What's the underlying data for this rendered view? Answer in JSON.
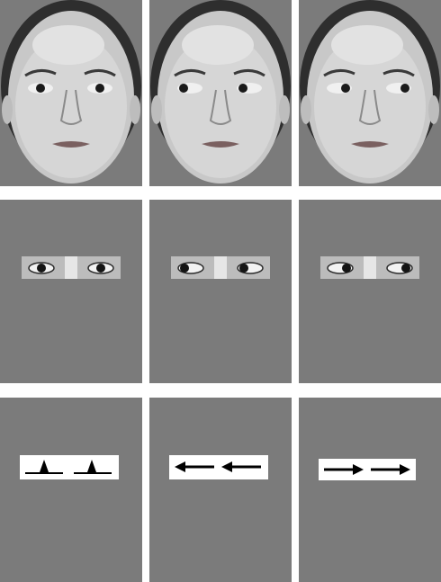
{
  "figure": {
    "background": "#7b7b7b",
    "rows": [
      {
        "kind": "face",
        "panels": [
          {
            "gaze": "center"
          },
          {
            "gaze": "left"
          },
          {
            "gaze": "right"
          }
        ]
      },
      {
        "kind": "eyes-only",
        "panels": [
          {
            "gaze": "center"
          },
          {
            "gaze": "left"
          },
          {
            "gaze": "right"
          }
        ]
      },
      {
        "kind": "symbolic-cue",
        "panels": [
          {
            "cue": "neutral-markers"
          },
          {
            "cue": "left-arrows"
          },
          {
            "cue": "right-arrows"
          }
        ]
      }
    ]
  }
}
